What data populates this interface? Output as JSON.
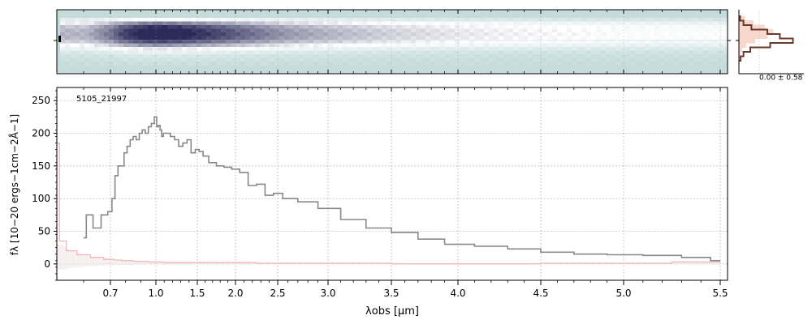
{
  "chart_data": [
    {
      "type": "heatmap",
      "panel": "2d-spectrum",
      "colormap": [
        "#c5dcdb",
        "#ffffff",
        "#2b2b5a"
      ],
      "background_color": "#c5dcdb",
      "trace_color": "#2f3366",
      "xlim": [
        0.5,
        5.53
      ],
      "x_axis_scale": "piecewise (compressed blue end)",
      "profile_y": [
        0.27,
        0.61,
        0.79,
        0.86,
        0.88,
        0.85,
        0.74,
        0.55,
        0.34,
        0.18,
        0.1,
        0.06,
        0.03
      ],
      "x": [
        0.6,
        0.75,
        0.9,
        1.0,
        1.2,
        1.5,
        1.8,
        2.2,
        2.6,
        3.0,
        3.4,
        3.8,
        4.2,
        4.6,
        5.0,
        5.5
      ],
      "trace_intensity": [
        0.35,
        0.75,
        0.95,
        1.0,
        0.95,
        0.85,
        0.75,
        0.6,
        0.45,
        0.35,
        0.25,
        0.18,
        0.12,
        0.08,
        0.05,
        0.03
      ]
    },
    {
      "type": "line",
      "panel": "cross-dispersion-profile",
      "annotation": "0.00 ± 0.58",
      "series": [
        {
          "color": "#6b3a2e",
          "values": [
            0.02,
            0.08,
            0.22,
            0.5,
            0.72,
            0.95,
            0.55,
            0.2,
            0.08,
            0.03
          ]
        },
        {
          "color": "#f4b7a3",
          "values": [
            0.1,
            0.25,
            0.45,
            0.6,
            0.5,
            0.28,
            0.12,
            0.05,
            0.02,
            0.01
          ]
        }
      ]
    },
    {
      "type": "line",
      "panel": "1d-spectrum",
      "annotation": "5105_21997",
      "xlabel": "λobs [μm]",
      "ylabel": "fλ [10−20 ergs−1cm−2Å−1]",
      "ylim": [
        -25,
        270
      ],
      "xlim": [
        0.5,
        5.53
      ],
      "xticks": [
        0.7,
        1.0,
        1.5,
        2.0,
        2.5,
        3.0,
        3.5,
        4.0,
        4.5,
        5.0,
        5.5
      ],
      "xtick_labels": [
        "0.7",
        "1.0",
        "1.5",
        "2.0",
        "2.5",
        "3.0",
        "3.5",
        "4.0",
        "4.5",
        "5.0",
        "5.5"
      ],
      "yticks": [
        0,
        50,
        100,
        150,
        200,
        250
      ],
      "ytick_labels": [
        "0",
        "50",
        "100",
        "150",
        "200",
        "250"
      ],
      "grid": true,
      "series": [
        {
          "color": "#888888",
          "x": [
            0.6,
            0.62,
            0.65,
            0.68,
            0.7,
            0.72,
            0.74,
            0.76,
            0.78,
            0.8,
            0.82,
            0.84,
            0.86,
            0.88,
            0.9,
            0.92,
            0.94,
            0.96,
            0.98,
            1.0,
            1.02,
            1.04,
            1.06,
            1.08,
            1.1,
            1.15,
            1.2,
            1.25,
            1.3,
            1.35,
            1.4,
            1.45,
            1.5,
            1.55,
            1.6,
            1.7,
            1.8,
            1.9,
            2.0,
            2.1,
            2.2,
            2.3,
            2.4,
            2.5,
            2.6,
            2.8,
            3.0,
            3.2,
            3.4,
            3.6,
            3.8,
            4.0,
            4.2,
            4.4,
            4.6,
            4.8,
            5.0,
            5.2,
            5.4,
            5.5
          ],
          "y": [
            40,
            75,
            55,
            75,
            80,
            100,
            135,
            150,
            150,
            170,
            180,
            190,
            195,
            190,
            200,
            205,
            200,
            210,
            215,
            225,
            210,
            212,
            205,
            195,
            200,
            200,
            195,
            190,
            180,
            185,
            190,
            170,
            175,
            172,
            165,
            155,
            150,
            148,
            145,
            140,
            120,
            122,
            105,
            108,
            100,
            95,
            85,
            68,
            55,
            48,
            38,
            30,
            27,
            23,
            18,
            15,
            14,
            13,
            10,
            5
          ]
        },
        {
          "color": "#f5b5b5",
          "x": [
            0.5,
            0.52,
            0.55,
            0.6,
            0.65,
            0.7,
            0.75,
            0.8,
            0.9,
            1.0,
            1.2,
            1.5,
            2.0,
            2.5,
            3.0,
            4.0,
            5.0,
            5.5
          ],
          "y": [
            185,
            35,
            20,
            14,
            10,
            7,
            6,
            5,
            4,
            3,
            2,
            2,
            2,
            1,
            1,
            0,
            1,
            3
          ]
        }
      ]
    }
  ]
}
